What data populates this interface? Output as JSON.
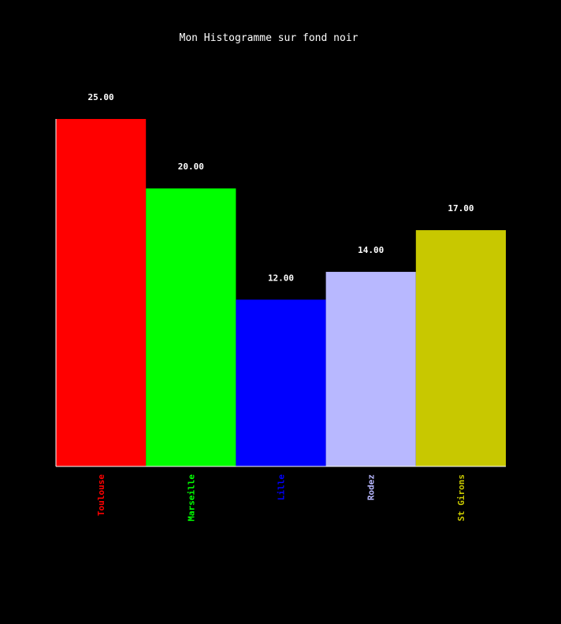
{
  "chart_data": {
    "type": "bar",
    "title": "Mon Histogramme sur fond noir",
    "xlabel": "",
    "ylabel": "",
    "categories": [
      "Toulouse",
      "Marseille",
      "Lille",
      "Rodez",
      "St Girons"
    ],
    "values": [
      25,
      20,
      12,
      14,
      17
    ],
    "value_labels": [
      "25.00",
      "20.00",
      "12.00",
      "14.00",
      "17.00"
    ],
    "colors": [
      "#ff0000",
      "#00ff00",
      "#0000ff",
      "#b8b8ff",
      "#c8c800"
    ],
    "ylim": [
      0,
      25
    ],
    "grid": false,
    "legend": "none",
    "background": "#000000",
    "axis_color": "#ffffff"
  }
}
